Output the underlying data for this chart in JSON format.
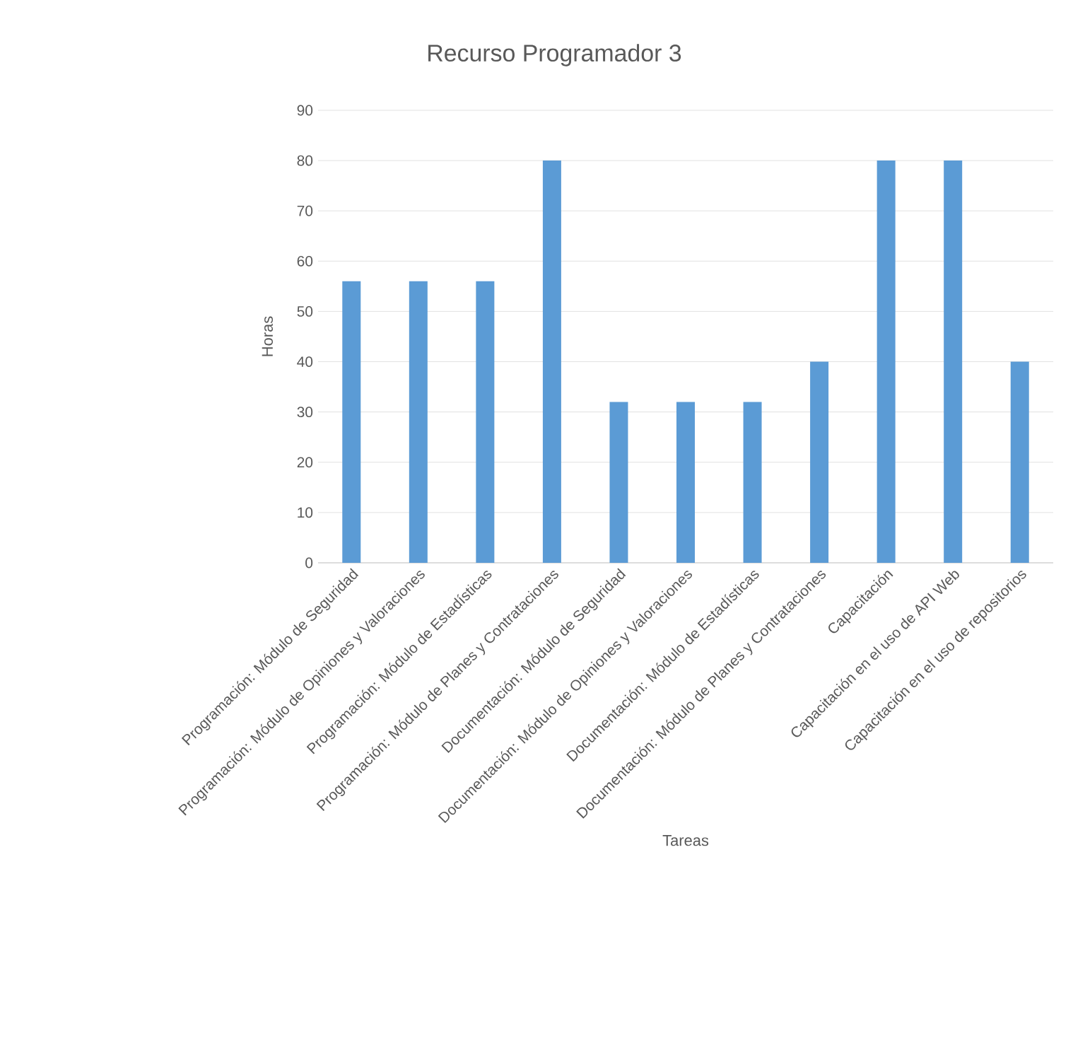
{
  "chart_data": {
    "type": "bar",
    "title": "Recurso Programador 3",
    "xlabel": "Tareas",
    "ylabel": "Horas",
    "categories": [
      "Programación: Módulo de Seguridad",
      "Programación: Módulo de Opiniones y Valoraciones",
      "Programación: Módulo de Estadísticas",
      "Programación: Módulo de Planes y Contrataciones",
      "Documentación: Módulo de Seguridad",
      "Documentación: Módulo de Opiniones y Valoraciones",
      "Documentación: Módulo de Estadísticas",
      "Documentación: Módulo de Planes y Contrataciones",
      "Capacitación",
      "Capacitación en el uso de API Web",
      "Capacitación en el uso de repositorios"
    ],
    "values": [
      56,
      56,
      56,
      80,
      32,
      32,
      32,
      40,
      80,
      80,
      40
    ],
    "color": "#5b9bd5",
    "ylim": [
      0,
      90
    ],
    "yticks": [
      0,
      10,
      20,
      30,
      40,
      50,
      60,
      70,
      80,
      90
    ],
    "grid": "y"
  }
}
